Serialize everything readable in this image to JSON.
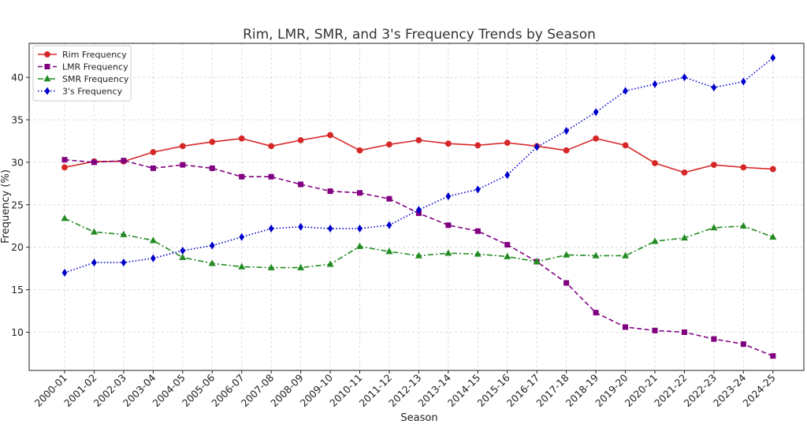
{
  "chart_data": {
    "type": "line",
    "title": "Rim, LMR, SMR, and 3's Frequency Trends by Season",
    "xlabel": "Season",
    "ylabel": "Frequency (%)",
    "ylim": [
      5.5,
      44
    ],
    "yticks": [
      10,
      15,
      20,
      25,
      30,
      35,
      40
    ],
    "grid": true,
    "legend_position": "top-left",
    "categories": [
      "2000-01",
      "2001-02",
      "2002-03",
      "2003-04",
      "2004-05",
      "2005-06",
      "2006-07",
      "2007-08",
      "2008-09",
      "2009-10",
      "2010-11",
      "2011-12",
      "2012-13",
      "2013-14",
      "2014-15",
      "2015-16",
      "2016-17",
      "2017-18",
      "2018-19",
      "2019-20",
      "2020-21",
      "2021-22",
      "2022-23",
      "2023-24",
      "2024-25"
    ],
    "series": [
      {
        "name": "Rim Frequency",
        "color": "#d62728",
        "dash": "solid",
        "marker": "circle",
        "values": [
          29.4,
          30.1,
          30.1,
          31.2,
          31.9,
          32.4,
          32.8,
          31.9,
          32.6,
          33.2,
          31.4,
          32.1,
          32.6,
          32.2,
          32.0,
          32.3,
          31.9,
          31.4,
          32.8,
          32.0,
          29.9,
          28.8,
          29.7,
          29.4,
          29.2
        ]
      },
      {
        "name": "LMR Frequency",
        "color": "#800080",
        "dash": "dashed",
        "marker": "square",
        "values": [
          30.3,
          30.0,
          30.2,
          29.3,
          29.7,
          29.3,
          28.3,
          28.3,
          27.4,
          26.6,
          26.4,
          25.7,
          24.0,
          22.6,
          21.9,
          20.3,
          18.3,
          15.8,
          12.3,
          10.6,
          10.2,
          10.0,
          9.2,
          8.6,
          7.2
        ]
      },
      {
        "name": "SMR Frequency",
        "color": "#228b22",
        "dash": "dashdot",
        "marker": "triangle",
        "values": [
          23.4,
          21.8,
          21.5,
          20.8,
          18.8,
          18.1,
          17.7,
          17.6,
          17.6,
          18.0,
          20.1,
          19.5,
          19.0,
          19.3,
          19.2,
          18.9,
          18.3,
          19.1,
          19.0,
          19.0,
          20.7,
          21.1,
          22.3,
          22.5,
          21.2
        ]
      },
      {
        "name": "3's Frequency",
        "color": "#0000cd",
        "dash": "dotted",
        "marker": "diamond",
        "values": [
          17.0,
          18.2,
          18.2,
          18.7,
          19.6,
          20.2,
          21.2,
          22.2,
          22.4,
          22.2,
          22.2,
          22.6,
          24.4,
          26.0,
          26.8,
          28.5,
          31.8,
          33.7,
          35.9,
          38.4,
          39.2,
          40.0,
          38.8,
          39.5,
          42.3
        ]
      }
    ]
  }
}
